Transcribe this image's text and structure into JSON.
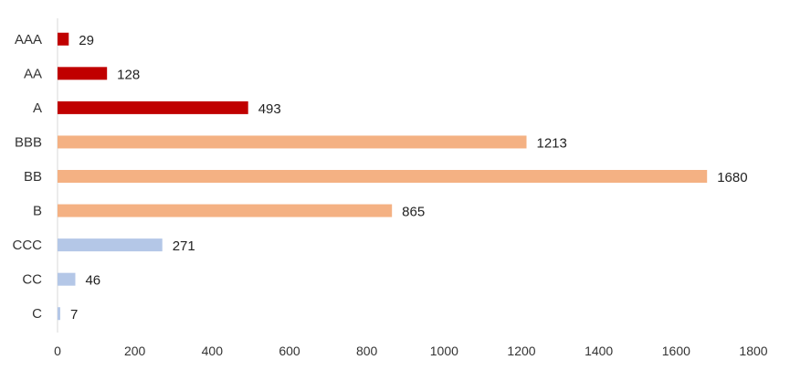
{
  "chart_data": {
    "type": "bar",
    "orientation": "horizontal",
    "title": "",
    "xlabel": "",
    "ylabel": "",
    "categories": [
      "AAA",
      "AA",
      "A",
      "BBB",
      "BB",
      "B",
      "CCC",
      "CC",
      "C"
    ],
    "values": [
      29,
      128,
      493,
      1213,
      1680,
      865,
      271,
      46,
      7
    ],
    "bar_colors": [
      "#c00000",
      "#c00000",
      "#c00000",
      "#f4b183",
      "#f4b183",
      "#f4b183",
      "#b4c7e7",
      "#b4c7e7",
      "#b4c7e7"
    ],
    "xlim": [
      0,
      1800
    ],
    "x_ticks": [
      0,
      200,
      400,
      600,
      800,
      1000,
      1200,
      1400,
      1600,
      1800
    ],
    "grid": false,
    "legend": "none",
    "data_labels": true
  }
}
